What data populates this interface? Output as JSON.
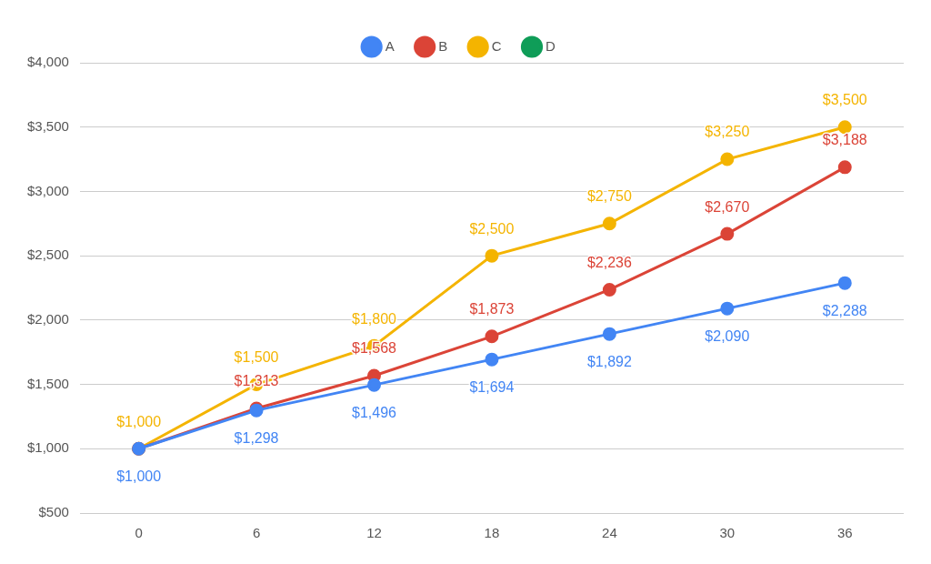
{
  "chart_data": {
    "type": "line",
    "categories": [
      "0",
      "6",
      "12",
      "18",
      "24",
      "30",
      "36"
    ],
    "series": [
      {
        "name": "A",
        "color": "#4285f4",
        "marker": "circle",
        "values": [
          1000,
          1298,
          1496,
          1694,
          1892,
          2090,
          2288
        ],
        "value_labels": [
          "$1,000",
          "$1,298",
          "$1,496",
          "$1,694",
          "$1,892",
          "$2,090",
          "$2,288"
        ]
      },
      {
        "name": "B",
        "color": "#db4437",
        "marker": "circle",
        "values": [
          1000,
          1313,
          1568,
          1873,
          2236,
          2670,
          3188
        ],
        "value_labels": [
          null,
          "$1,313",
          "$1,568",
          "$1,873",
          "$2,236",
          "$2,670",
          "$3,188"
        ]
      },
      {
        "name": "C",
        "color": "#f4b400",
        "marker": "circle",
        "values": [
          1000,
          1500,
          1800,
          2500,
          2750,
          3250,
          3500
        ],
        "value_labels": [
          "$1,000",
          "$1,500",
          "$1,800",
          "$2,500",
          "$2,750",
          "$3,250",
          "$3,500"
        ]
      },
      {
        "name": "D",
        "color": "#0f9d58",
        "marker": "circle",
        "values": [
          null,
          null,
          null,
          null,
          null,
          null,
          null
        ]
      }
    ],
    "ylim": [
      500,
      4000
    ],
    "yticks": [
      {
        "value": 500,
        "label": "$500"
      },
      {
        "value": 1000,
        "label": "$1,000"
      },
      {
        "value": 1500,
        "label": "$1,500"
      },
      {
        "value": 2000,
        "label": "$2,000"
      },
      {
        "value": 2500,
        "label": "$2,500"
      },
      {
        "value": 3000,
        "label": "$3,000"
      },
      {
        "value": 3500,
        "label": "$3,500"
      },
      {
        "value": 4000,
        "label": "$4,000"
      }
    ],
    "grid": true,
    "legend": "top",
    "data_labels": true
  }
}
